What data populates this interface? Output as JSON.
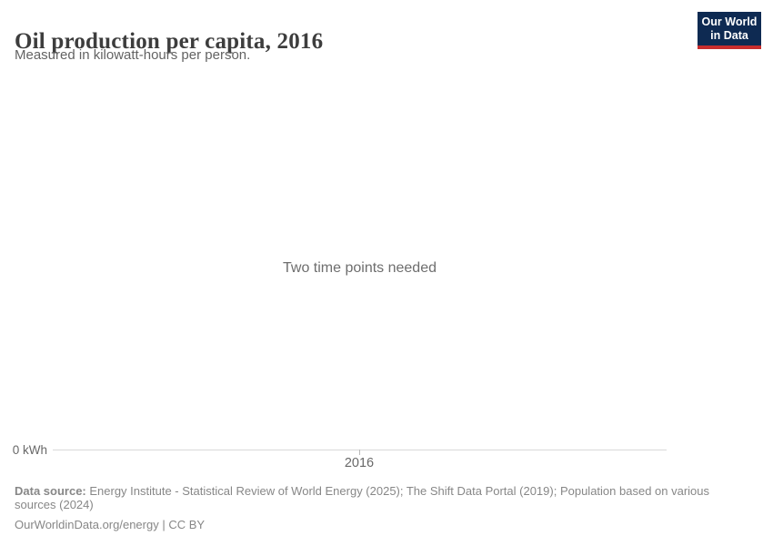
{
  "header": {
    "title": "Oil production per capita, 2016",
    "subtitle": "Measured in kilowatt-hours per person.",
    "logo": {
      "line1": "Our World",
      "line2": "in Data"
    }
  },
  "chart": {
    "empty_message": "Two time points needed",
    "y_axis_tick": "0 kWh",
    "x_axis_tick": "2016"
  },
  "chart_data": {
    "type": "line",
    "title": "Oil production per capita, 2016",
    "subtitle": "Measured in kilowatt-hours per person.",
    "unit": "kilowatt-hours per person",
    "x_ticks": [
      "2016"
    ],
    "y_ticks": [
      "0 kWh"
    ],
    "series": [],
    "empty_state_message": "Two time points needed",
    "grid": false,
    "legend_position": "none",
    "note": "Chart shows an empty state; no data points are rendered."
  },
  "colors": {
    "logo_background": "#0e2a52",
    "logo_accent": "#c82d2d",
    "title_text": "#3d3d3d",
    "subtitle_text": "#636363",
    "message_text": "#6e6e6e",
    "axis_line": "#d9d9d9",
    "axis_text": "#686868",
    "footer_text": "#878787"
  },
  "footer": {
    "datasource_label": "Data source:",
    "datasource_text": " Energy Institute - Statistical Review of World Energy (2025); The Shift Data Portal (2019); Population based on various sources (2024)",
    "link_text": "OurWorldinData.org/energy",
    "separator": " | ",
    "license_text": "CC BY"
  }
}
